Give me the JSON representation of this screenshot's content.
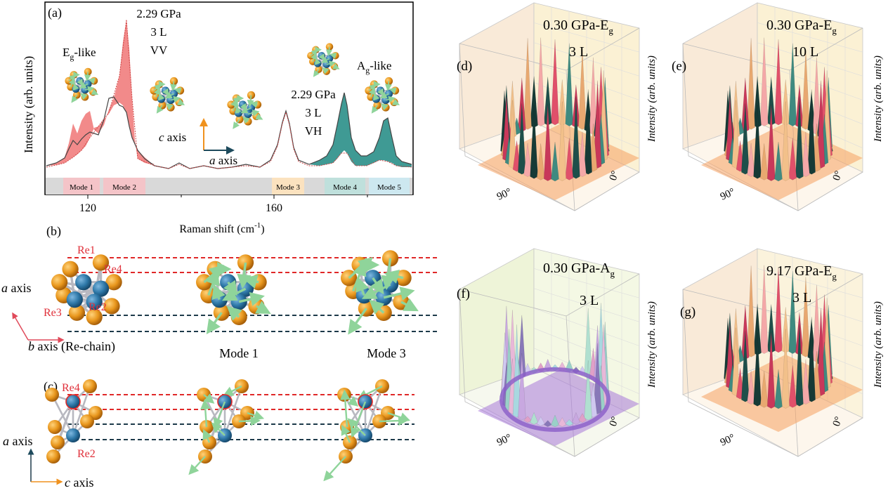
{
  "panel_a": {
    "label": "(a)",
    "ylabel": "Intensity (arb. units)",
    "xlabel_main": "Raman shift (cm",
    "xlabel_sup": "-1",
    "xlabel_end": ")",
    "xticks": [
      "120",
      "160"
    ],
    "ann_vv": [
      "2.29 GPa",
      "3 L",
      "VV"
    ],
    "ann_vh": [
      "2.29 GPa",
      "3 L",
      "VH"
    ],
    "eg_like": {
      "main": "E",
      "sub": "g",
      "rest": "-like"
    },
    "ag_like": {
      "main": "A",
      "sub": "g",
      "rest": "-like"
    },
    "c_axis": {
      "italic": "c",
      "rest": " axis"
    },
    "a_axis": {
      "italic": "a",
      "rest": " axis"
    },
    "modes": [
      "Mode 1",
      "Mode 2",
      "Mode 3",
      "Mode 4",
      "Mode 5"
    ],
    "colors": {
      "vv": "#f28a8a",
      "vh": "#3f9a94",
      "line": "#444444"
    }
  },
  "panel_b": {
    "label": "(b)",
    "atoms": [
      "Re1",
      "Re4",
      "Re3",
      "Re2"
    ],
    "a_axis": {
      "italic": "a",
      "rest": " axis"
    },
    "b_axis": {
      "italic": "b",
      "rest": " axis (Re-chain)"
    },
    "mode_labels": [
      "Mode 1",
      "Mode 3"
    ]
  },
  "panel_c": {
    "label": "(c)",
    "atoms": [
      "Re4",
      "Re2"
    ],
    "a_axis": {
      "italic": "a",
      "rest": " axis"
    },
    "c_axis": {
      "italic": "c",
      "rest": " axis"
    }
  },
  "polar_panels": [
    {
      "label": "(d)",
      "title_main": "0.30 GPa-E",
      "title_sub": "g",
      "layers": "3 L",
      "zlabel": "Intensity (arb. units)",
      "angle90": "90°",
      "angle0": "0°",
      "plane": "#f5a060"
    },
    {
      "label": "(e)",
      "title_main": "0.30 GPa-E",
      "title_sub": "g",
      "layers": "10 L",
      "zlabel": "Intensity (arb. units)",
      "angle90": "90°",
      "angle0": "0°",
      "plane": "#f5a060"
    },
    {
      "label": "(f)",
      "title_main": "0.30 GPa-A",
      "title_sub": "g",
      "layers": "3 L",
      "zlabel": "Intensity (arb. units)",
      "angle90": "90°",
      "angle0": "0°",
      "plane": "#a878d8"
    },
    {
      "label": "(g)",
      "title_main": "9.17 GPa-E",
      "title_sub": "g",
      "layers": "3 L",
      "zlabel": "Intensity (arb. units)",
      "angle90": "90°",
      "angle0": "0°",
      "plane": "#f5a060"
    }
  ]
}
